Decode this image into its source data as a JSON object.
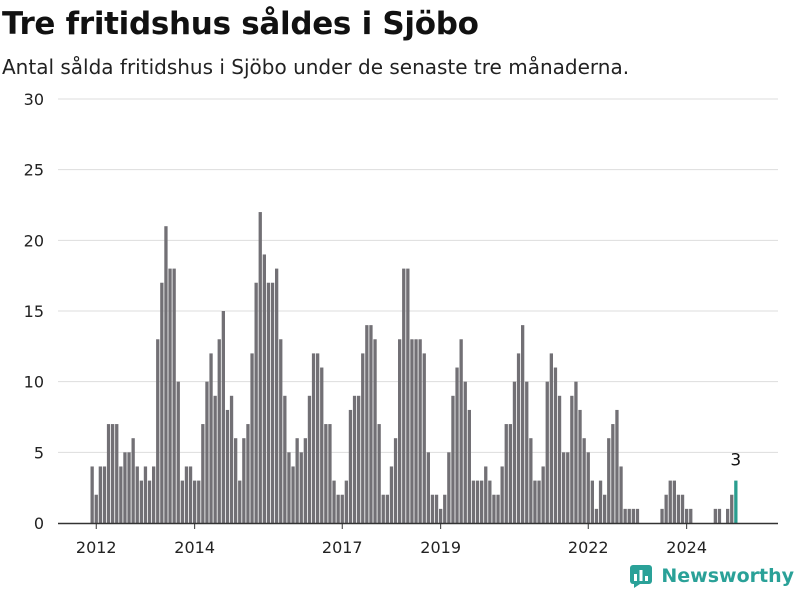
{
  "title": "Tre fritidshus såldes i Sjöbo",
  "subtitle": "Antal sålda fritidshus i Sjöbo under de senaste tre månaderna.",
  "brand": {
    "name": "Newsworthy",
    "icon": "newsworthy-logo-icon",
    "color": "#2aa198"
  },
  "chart_data": {
    "type": "bar",
    "title": "Tre fritidshus såldes i Sjöbo",
    "subtitle": "Antal sålda fritidshus i Sjöbo under de senaste tre månaderna.",
    "xlabel": "",
    "ylabel": "",
    "ylim": [
      0,
      30
    ],
    "yticks": [
      0,
      5,
      10,
      15,
      20,
      25,
      30
    ],
    "xticks": [
      "2012",
      "2014",
      "2017",
      "2019",
      "2022",
      "2024"
    ],
    "grid": true,
    "colors": {
      "bar": "#727075",
      "highlight": "#2a9d8f",
      "grid": "#dddddd"
    },
    "annotation": {
      "label": "3",
      "target": "last"
    },
    "x_start": "2011-12",
    "x_end": "2024-12",
    "values": [
      4,
      2,
      4,
      4,
      7,
      7,
      7,
      4,
      5,
      5,
      6,
      4,
      3,
      4,
      3,
      4,
      13,
      17,
      21,
      18,
      18,
      10,
      3,
      4,
      4,
      3,
      3,
      7,
      10,
      12,
      9,
      13,
      15,
      8,
      9,
      6,
      3,
      6,
      7,
      12,
      17,
      22,
      19,
      17,
      17,
      18,
      13,
      9,
      5,
      4,
      6,
      5,
      6,
      9,
      12,
      12,
      11,
      7,
      7,
      3,
      2,
      2,
      3,
      8,
      9,
      9,
      12,
      14,
      14,
      13,
      7,
      2,
      2,
      4,
      6,
      13,
      18,
      18,
      13,
      13,
      13,
      12,
      5,
      2,
      2,
      1,
      2,
      5,
      9,
      11,
      13,
      10,
      8,
      3,
      3,
      3,
      4,
      3,
      2,
      2,
      4,
      7,
      7,
      10,
      12,
      14,
      10,
      6,
      3,
      3,
      4,
      10,
      12,
      11,
      9,
      5,
      5,
      9,
      10,
      8,
      6,
      5,
      3,
      1,
      3,
      2,
      6,
      7,
      8,
      4,
      1,
      1,
      1,
      1,
      0,
      0,
      0,
      0,
      0,
      1,
      2,
      3,
      3,
      2,
      2,
      1,
      1,
      0,
      0,
      0,
      0,
      0,
      1,
      1,
      0,
      1,
      2,
      3
    ]
  }
}
